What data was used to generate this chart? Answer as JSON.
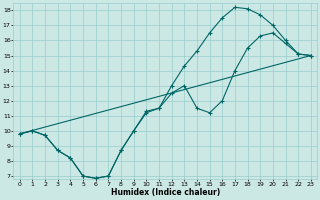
{
  "xlabel": "Humidex (Indice chaleur)",
  "bg_color": "#cce8e4",
  "grid_color": "#99cccc",
  "line_color": "#006666",
  "xlim": [
    -0.5,
    23.5
  ],
  "ylim": [
    6.8,
    18.5
  ],
  "xticks": [
    0,
    1,
    2,
    3,
    4,
    5,
    6,
    7,
    8,
    9,
    10,
    11,
    12,
    13,
    14,
    15,
    16,
    17,
    18,
    19,
    20,
    21,
    22,
    23
  ],
  "yticks": [
    7,
    8,
    9,
    10,
    11,
    12,
    13,
    14,
    15,
    16,
    17,
    18
  ],
  "line1_x": [
    0,
    1,
    2,
    3,
    4,
    5,
    6,
    7,
    8,
    9,
    10,
    11,
    12,
    13,
    14,
    15,
    16,
    17,
    18,
    19,
    20,
    21,
    22,
    23
  ],
  "line1_y": [
    9.8,
    10.0,
    9.7,
    8.7,
    8.2,
    7.0,
    6.85,
    7.0,
    8.7,
    10.0,
    11.3,
    11.5,
    13.0,
    14.3,
    15.3,
    16.5,
    17.5,
    18.2,
    18.1,
    17.7,
    17.0,
    16.0,
    15.1,
    15.0
  ],
  "line2_x": [
    0,
    1,
    2,
    3,
    4,
    5,
    6,
    7,
    8,
    9,
    10,
    11,
    12,
    13,
    14,
    15,
    16,
    17,
    18,
    19,
    20,
    21,
    22,
    23
  ],
  "line2_y": [
    9.8,
    10.0,
    9.7,
    8.7,
    8.2,
    7.0,
    6.85,
    7.0,
    8.7,
    10.0,
    11.2,
    11.5,
    12.5,
    13.0,
    11.5,
    11.2,
    12.0,
    14.0,
    15.5,
    16.3,
    16.5,
    15.8,
    15.1,
    15.0
  ],
  "line3_x": [
    0,
    23
  ],
  "line3_y": [
    9.8,
    15.0
  ]
}
